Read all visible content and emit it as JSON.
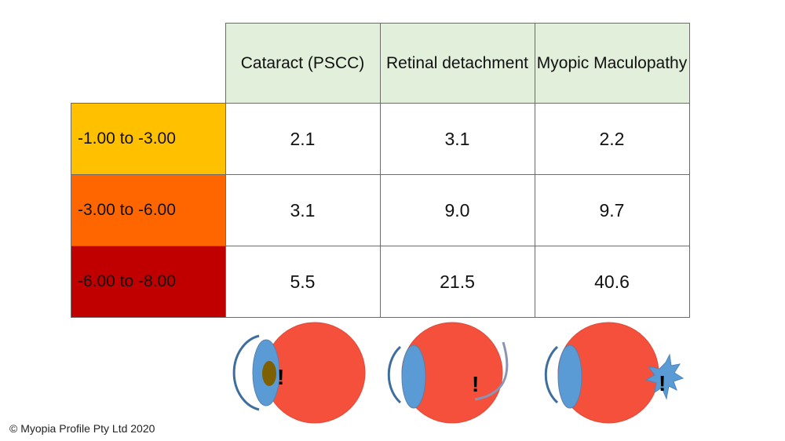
{
  "table": {
    "columns": [
      "Cataract (PSCC)",
      "Retinal detachment",
      "Myopic Maculopathy"
    ],
    "rows": [
      {
        "label": "-1.00 to -3.00",
        "color": "#ffc000",
        "values": [
          "2.1",
          "3.1",
          "2.2"
        ]
      },
      {
        "label": "-3.00 to -6.00",
        "color": "#ff6600",
        "values": [
          "3.1",
          "9.0",
          "9.7"
        ]
      },
      {
        "label": "-6.00 to -8.00",
        "color": "#c00000",
        "values": [
          "5.5",
          "21.5",
          "40.6"
        ]
      }
    ]
  },
  "illustrations": {
    "mark": "!",
    "eye_color": "#f4503c",
    "lens_color": "#5b9bd5",
    "cataract_color": "#7f6000"
  },
  "copyright": "© Myopia Profile Pty Ltd 2020"
}
